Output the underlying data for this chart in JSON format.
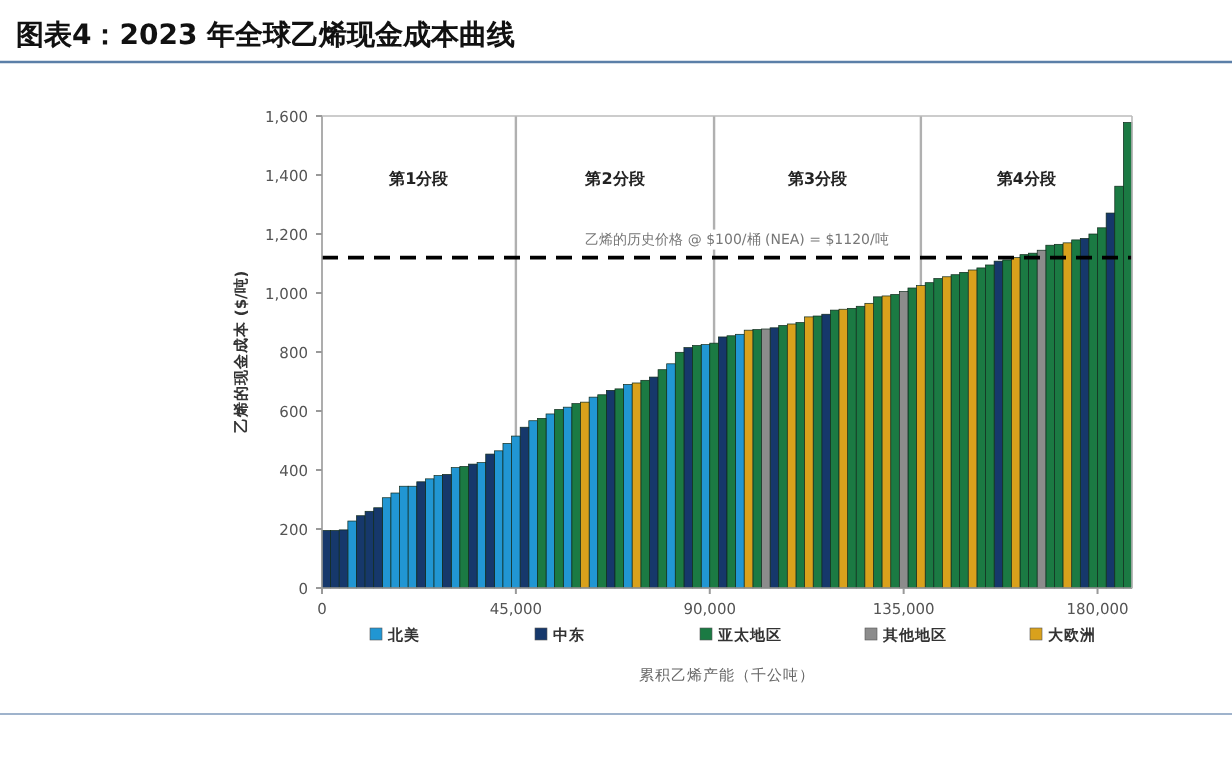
{
  "chart_data": {
    "type": "bar",
    "title": "图表4：2023 年全球乙烯现金成本曲线",
    "xlabel": "累积乙烯产能（千公吨）",
    "ylabel": "乙烯的现金成本 ($/吨)",
    "xlim": [
      0,
      188000
    ],
    "ylim": [
      0,
      1600
    ],
    "xticks": [
      {
        "value": 0,
        "label": "0"
      },
      {
        "value": 45000,
        "label": "45,000"
      },
      {
        "value": 90000,
        "label": "90,000"
      },
      {
        "value": 135000,
        "label": "135,000"
      },
      {
        "value": 180000,
        "label": "180,000"
      }
    ],
    "yticks": [
      {
        "value": 0,
        "label": "0"
      },
      {
        "value": 200,
        "label": "200"
      },
      {
        "value": 400,
        "label": "400"
      },
      {
        "value": 600,
        "label": "600"
      },
      {
        "value": 800,
        "label": "800"
      },
      {
        "value": 1000,
        "label": "1,000"
      },
      {
        "value": 1200,
        "label": "1,200"
      },
      {
        "value": 1400,
        "label": "1,400"
      },
      {
        "value": 1600,
        "label": "1,600"
      }
    ],
    "legend": "bottom",
    "ref_lines": [
      {
        "axis": "y",
        "value": 1120,
        "label": "乙烯的历史价格 @ $100/桶 (NEA) = $1120/吨",
        "color": "#000000",
        "line_style": "dashed"
      },
      {
        "axis": "x",
        "value": 45000,
        "color": "#b0b0b0"
      },
      {
        "axis": "x",
        "value": 91000,
        "color": "#b0b0b0"
      },
      {
        "axis": "x",
        "value": 139000,
        "color": "#b0b0b0"
      }
    ],
    "annotations": [
      "第1分段",
      "第2分段",
      "第3分段",
      "第4分段"
    ],
    "series": [
      {
        "name": "北美",
        "color": "#2196d3",
        "x": [
          7000,
          15000,
          17000,
          19000,
          21000,
          25000,
          27000,
          31000,
          37000,
          41000,
          43000,
          45000,
          49000,
          53000,
          57000,
          63000,
          71000,
          81000,
          89000,
          97000
        ],
        "values": [
          227,
          306,
          322,
          345,
          345,
          370,
          381,
          408,
          425,
          465,
          490,
          515,
          567,
          590,
          613,
          647,
          690,
          760,
          825,
          860
        ]
      },
      {
        "name": "中东",
        "color": "#16386b",
        "x": [
          1000,
          3000,
          5000,
          9000,
          11000,
          13000,
          23000,
          29000,
          35000,
          39000,
          47000,
          67000,
          77000,
          85000,
          93000,
          105000,
          117000,
          157000,
          177000,
          183000
        ],
        "values": [
          195,
          195,
          197,
          245,
          260,
          272,
          360,
          385,
          420,
          454,
          545,
          670,
          715,
          815,
          851,
          882,
          928,
          1108,
          1185,
          1271
        ]
      },
      {
        "name": "亚太地区",
        "color": "#1b7a43",
        "x": [
          33000,
          51000,
          55000,
          59000,
          65000,
          69000,
          75000,
          79000,
          83000,
          87000,
          91000,
          95000,
          101000,
          107000,
          111000,
          115000,
          119000,
          123000,
          125000,
          129000,
          133000,
          137000,
          141000,
          143000,
          147000,
          149000,
          153000,
          155000,
          159000,
          163000,
          165000,
          169000,
          171000,
          175000,
          179000,
          181000,
          185000,
          187000
        ],
        "values": [
          412,
          575,
          605,
          625,
          655,
          675,
          704,
          740,
          799,
          822,
          830,
          855,
          876,
          890,
          900,
          922,
          942,
          948,
          955,
          987,
          995,
          1017,
          1035,
          1049,
          1062,
          1070,
          1085,
          1095,
          1112,
          1130,
          1135,
          1162,
          1165,
          1180,
          1200,
          1221,
          1362,
          1578
        ]
      },
      {
        "name": "其他地区",
        "color": "#8c8c8c",
        "x": [
          103000,
          135000,
          167000
        ],
        "values": [
          878,
          1005,
          1145
        ]
      },
      {
        "name": "大欧洲",
        "color": "#d9a11c",
        "x": [
          61000,
          73000,
          99000,
          109000,
          113000,
          121000,
          127000,
          131000,
          139000,
          145000,
          151000,
          161000,
          173000
        ],
        "values": [
          630,
          695,
          874,
          895,
          919,
          945,
          965,
          990,
          1025,
          1055,
          1078,
          1120,
          1170
        ]
      }
    ]
  }
}
